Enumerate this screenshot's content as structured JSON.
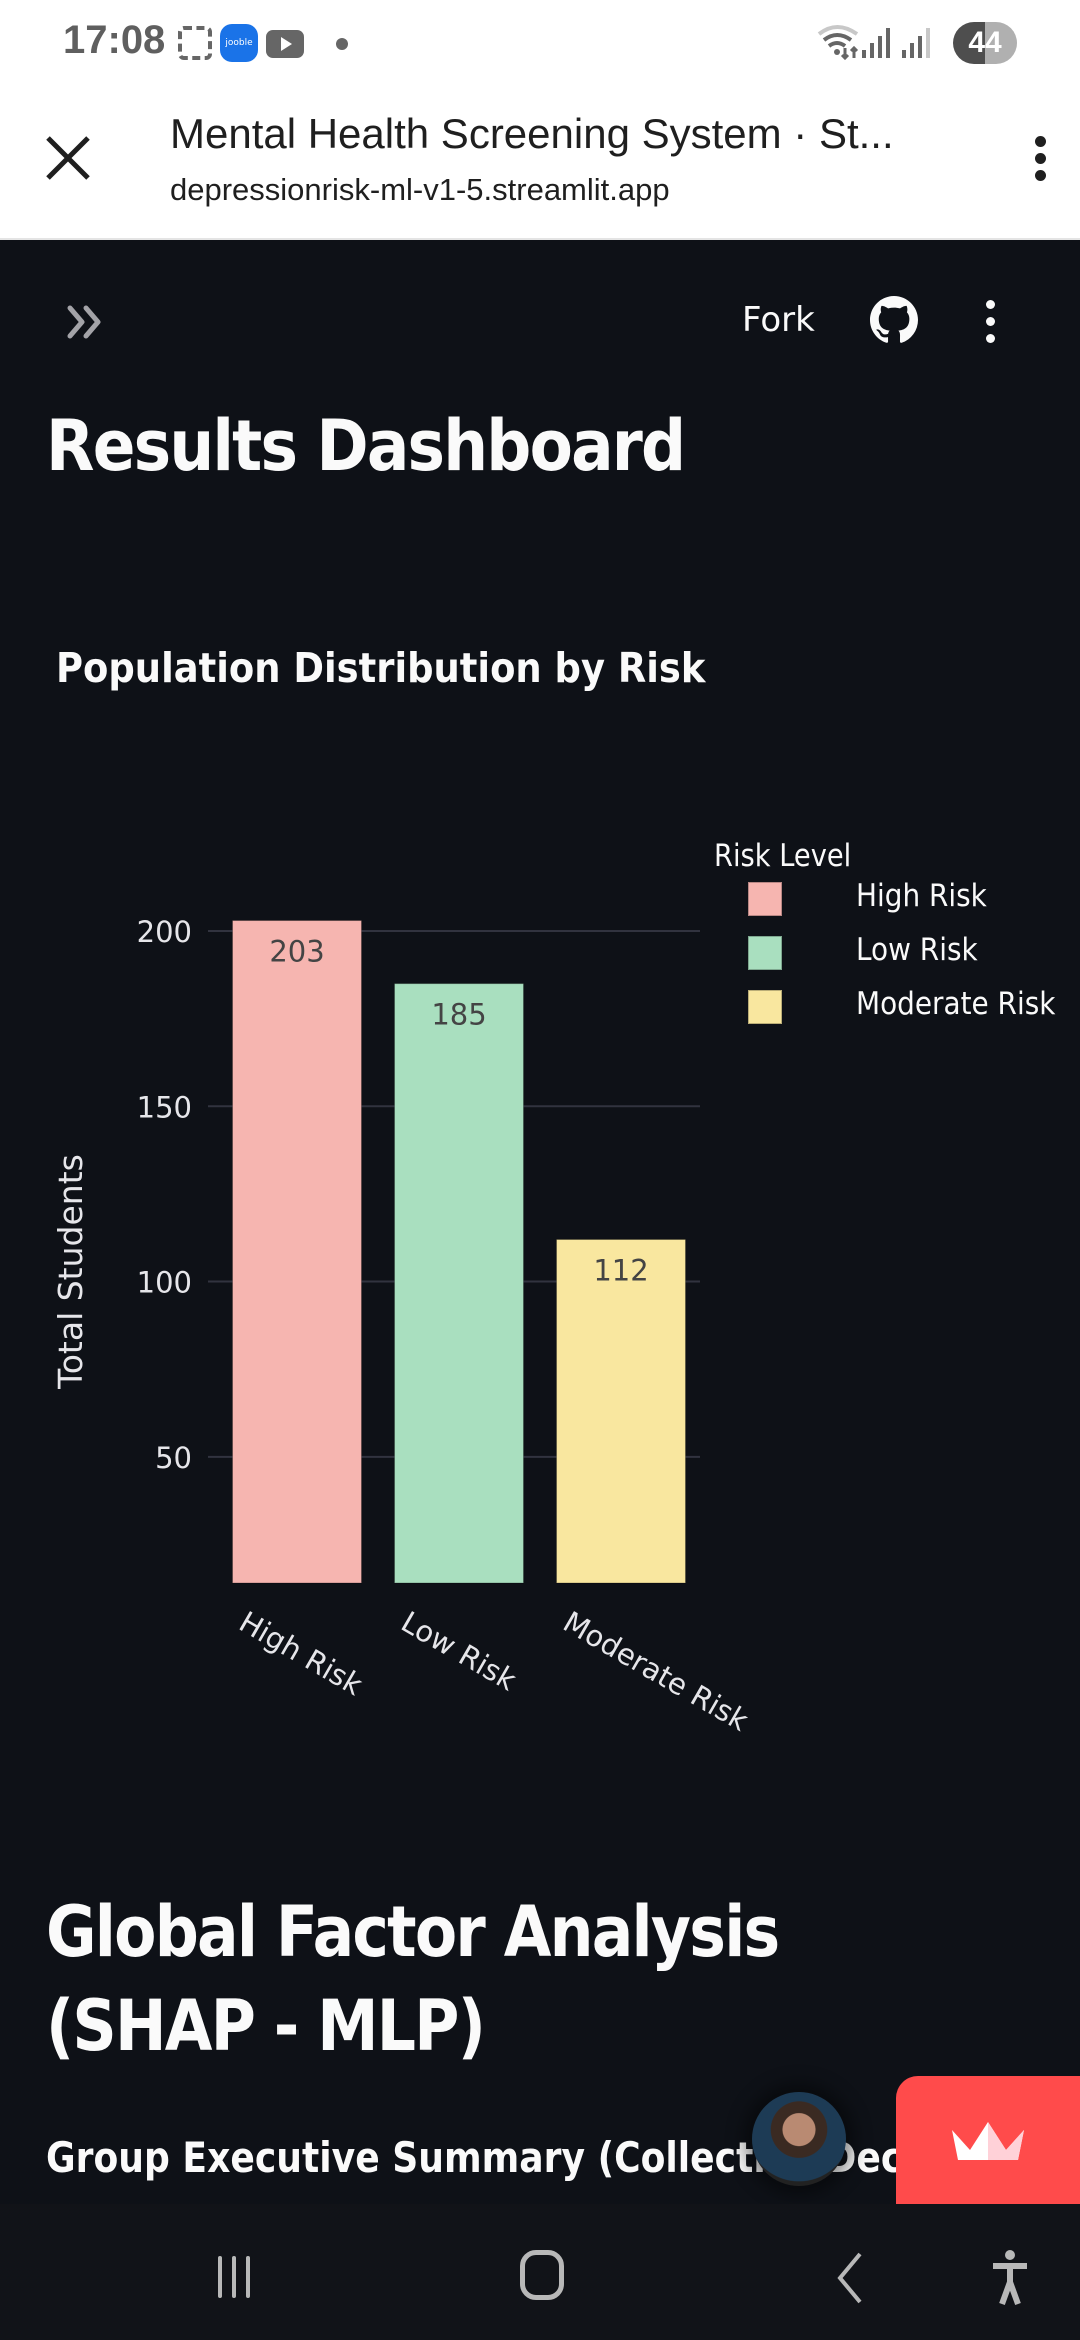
{
  "status_bar": {
    "time": "17:08",
    "notification_icons": [
      "screenshot-icon",
      "jooble-app-icon",
      "youtube-icon",
      "more-notifications-dot"
    ],
    "jooble_label": "jooble",
    "battery": "44"
  },
  "browser": {
    "title": "Mental Health Screening System · St...",
    "url": "depressionrisk-ml-v1-5.streamlit.app"
  },
  "app_toolbar": {
    "fork_label": "Fork"
  },
  "main": {
    "heading": "Results Dashboard",
    "section_heading": "Global Factor Analysis (SHAP - MLP)",
    "subheading": "Group Executive Summary (Collective Decisi"
  },
  "colors": {
    "background": "#0e1117",
    "streamlit_red": "#ff4b4b"
  },
  "chart_data": {
    "type": "bar",
    "title": "Population Distribution by Risk",
    "xlabel": "",
    "ylabel": "Total Students",
    "categories": [
      "High Risk",
      "Low Risk",
      "Moderate Risk"
    ],
    "values": [
      203,
      185,
      112
    ],
    "data_labels": [
      "203",
      "185",
      "112"
    ],
    "colors": [
      "#f6b5b0",
      "#a9dfbf",
      "#f9e79f"
    ],
    "ylim": [
      14,
      206
    ],
    "yticks": [
      50,
      100,
      150,
      200
    ],
    "ytick_labels": [
      "50",
      "100",
      "150",
      "200"
    ],
    "grid": true,
    "legend": {
      "title": "Risk Level",
      "placement": "top-right",
      "entries": [
        "High Risk",
        "Low Risk",
        "Moderate Risk"
      ]
    }
  }
}
